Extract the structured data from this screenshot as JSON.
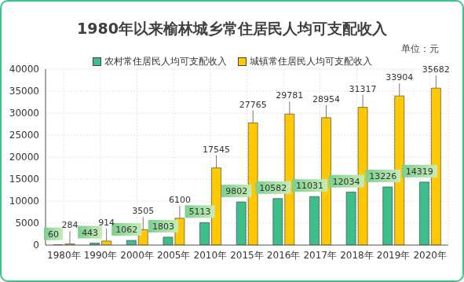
{
  "chart_data": {
    "type": "bar",
    "title": "1980年以来榆林城乡常住居民人均可支配收入",
    "y_label": "单位：元",
    "categories": [
      "1980年",
      "1990年",
      "2000年",
      "2005年",
      "2010年",
      "2015年",
      "2016年",
      "2017年",
      "2018年",
      "2019年",
      "2020年"
    ],
    "series": [
      {
        "name": "农村常住居民人均可支配收入",
        "color": "#3dbf8c",
        "values": [
          60,
          443,
          1062,
          1803,
          5113,
          9802,
          10582,
          11031,
          12034,
          13226,
          14319
        ]
      },
      {
        "name": "城镇常住居民人均可支配收入",
        "color": "#ffc800",
        "values": [
          284,
          914,
          3505,
          6100,
          17545,
          27765,
          29781,
          28954,
          31317,
          33904,
          35682
        ]
      }
    ],
    "ylim": [
      0,
      40000
    ],
    "yticks": [
      0,
      5000,
      10000,
      15000,
      20000,
      25000,
      30000,
      35000,
      40000
    ],
    "grid": true,
    "legend": "top",
    "data_labels": true
  }
}
